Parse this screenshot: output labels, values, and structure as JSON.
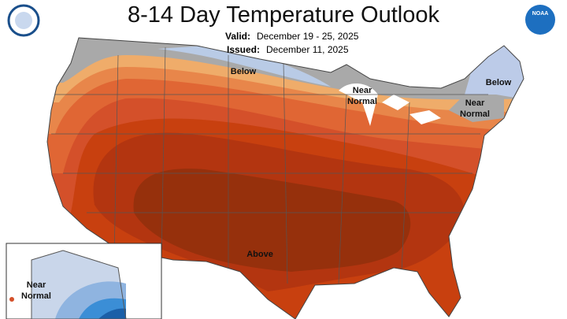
{
  "header": {
    "title": "8-14 Day Temperature Outlook",
    "valid": {
      "label": "Valid:",
      "value": "December 19 - 25, 2025"
    },
    "issued": {
      "label": "Issued:",
      "value": "December 11, 2025"
    }
  },
  "logos": {
    "right": "NOAA"
  },
  "map": {
    "labels": [
      {
        "lines": [
          "Below"
        ]
      },
      {
        "lines": [
          "Near",
          "Normal"
        ]
      },
      {
        "lines": [
          "Below"
        ]
      },
      {
        "lines": [
          "Near",
          "Normal"
        ]
      },
      {
        "lines": [
          "Above"
        ]
      },
      {
        "lines": [
          "Near",
          "Normal"
        ]
      }
    ]
  }
}
